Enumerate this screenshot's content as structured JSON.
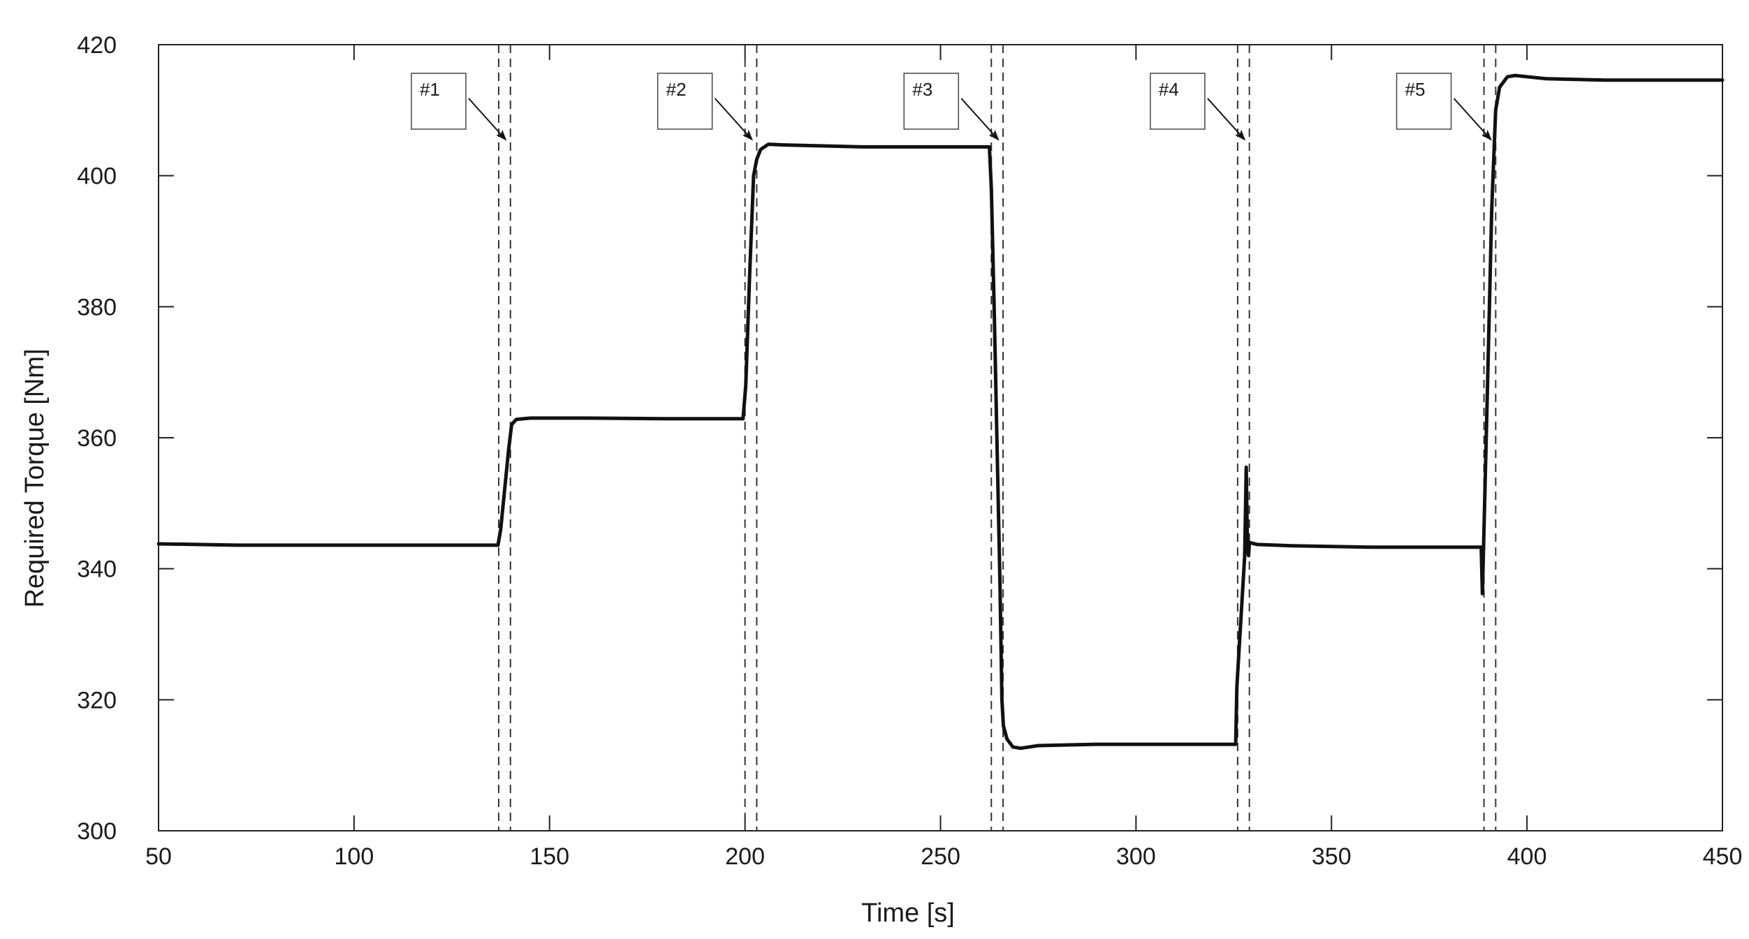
{
  "chart_data": {
    "type": "line",
    "xlabel": "Time [s]",
    "ylabel": "Required Torque [Nm]",
    "xlim": [
      50,
      450
    ],
    "ylim": [
      300,
      420
    ],
    "xticks": [
      50,
      100,
      150,
      200,
      250,
      300,
      350,
      400,
      450
    ],
    "yticks": [
      300,
      320,
      340,
      360,
      380,
      400,
      420
    ],
    "grid": false,
    "series": [
      {
        "color": "#111111",
        "points": [
          [
            50,
            343.8
          ],
          [
            60,
            343.7
          ],
          [
            70,
            343.6
          ],
          [
            100,
            343.6
          ],
          [
            130,
            343.6
          ],
          [
            136.8,
            343.6
          ],
          [
            137.5,
            346
          ],
          [
            138.5,
            352
          ],
          [
            139.5,
            358
          ],
          [
            140.3,
            362
          ],
          [
            141.5,
            362.8
          ],
          [
            145,
            363.0
          ],
          [
            160,
            363.0
          ],
          [
            180,
            362.9
          ],
          [
            199.5,
            362.9
          ],
          [
            200.2,
            368
          ],
          [
            201.2,
            385
          ],
          [
            202.2,
            400
          ],
          [
            203,
            402.5
          ],
          [
            204,
            404
          ],
          [
            206,
            404.8
          ],
          [
            210,
            404.7
          ],
          [
            230,
            404.4
          ],
          [
            250,
            404.4
          ],
          [
            262.5,
            404.4
          ],
          [
            263,
            398
          ],
          [
            263.8,
            378
          ],
          [
            264.6,
            355
          ],
          [
            265.2,
            338
          ],
          [
            265.7,
            320
          ],
          [
            266.1,
            316
          ],
          [
            267,
            314
          ],
          [
            268.5,
            312.8
          ],
          [
            270.5,
            312.6
          ],
          [
            275,
            313.0
          ],
          [
            290,
            313.2
          ],
          [
            310,
            313.2
          ],
          [
            325.5,
            313.2
          ],
          [
            325.8,
            322
          ],
          [
            326.8,
            332
          ],
          [
            327.8,
            342
          ],
          [
            328.2,
            355.5
          ],
          [
            328.5,
            343
          ],
          [
            328.8,
            342
          ],
          [
            329,
            344
          ],
          [
            331,
            343.7
          ],
          [
            340,
            343.5
          ],
          [
            360,
            343.3
          ],
          [
            380,
            343.3
          ],
          [
            388.3,
            343.3
          ],
          [
            388.6,
            336.2
          ],
          [
            389,
            346
          ],
          [
            390,
            370
          ],
          [
            391,
            395
          ],
          [
            392,
            410
          ],
          [
            393,
            413.5
          ],
          [
            395,
            415.1
          ],
          [
            397,
            415.3
          ],
          [
            405,
            414.8
          ],
          [
            420,
            414.6
          ],
          [
            450,
            414.6
          ]
        ]
      }
    ],
    "event_markers": [
      {
        "label": "#1",
        "lines_x": [
          137,
          140
        ]
      },
      {
        "label": "#2",
        "lines_x": [
          200,
          203
        ]
      },
      {
        "label": "#3",
        "lines_x": [
          263,
          266
        ]
      },
      {
        "label": "#4",
        "lines_x": [
          326,
          329
        ]
      },
      {
        "label": "#5",
        "lines_x": [
          389,
          392
        ]
      }
    ]
  }
}
